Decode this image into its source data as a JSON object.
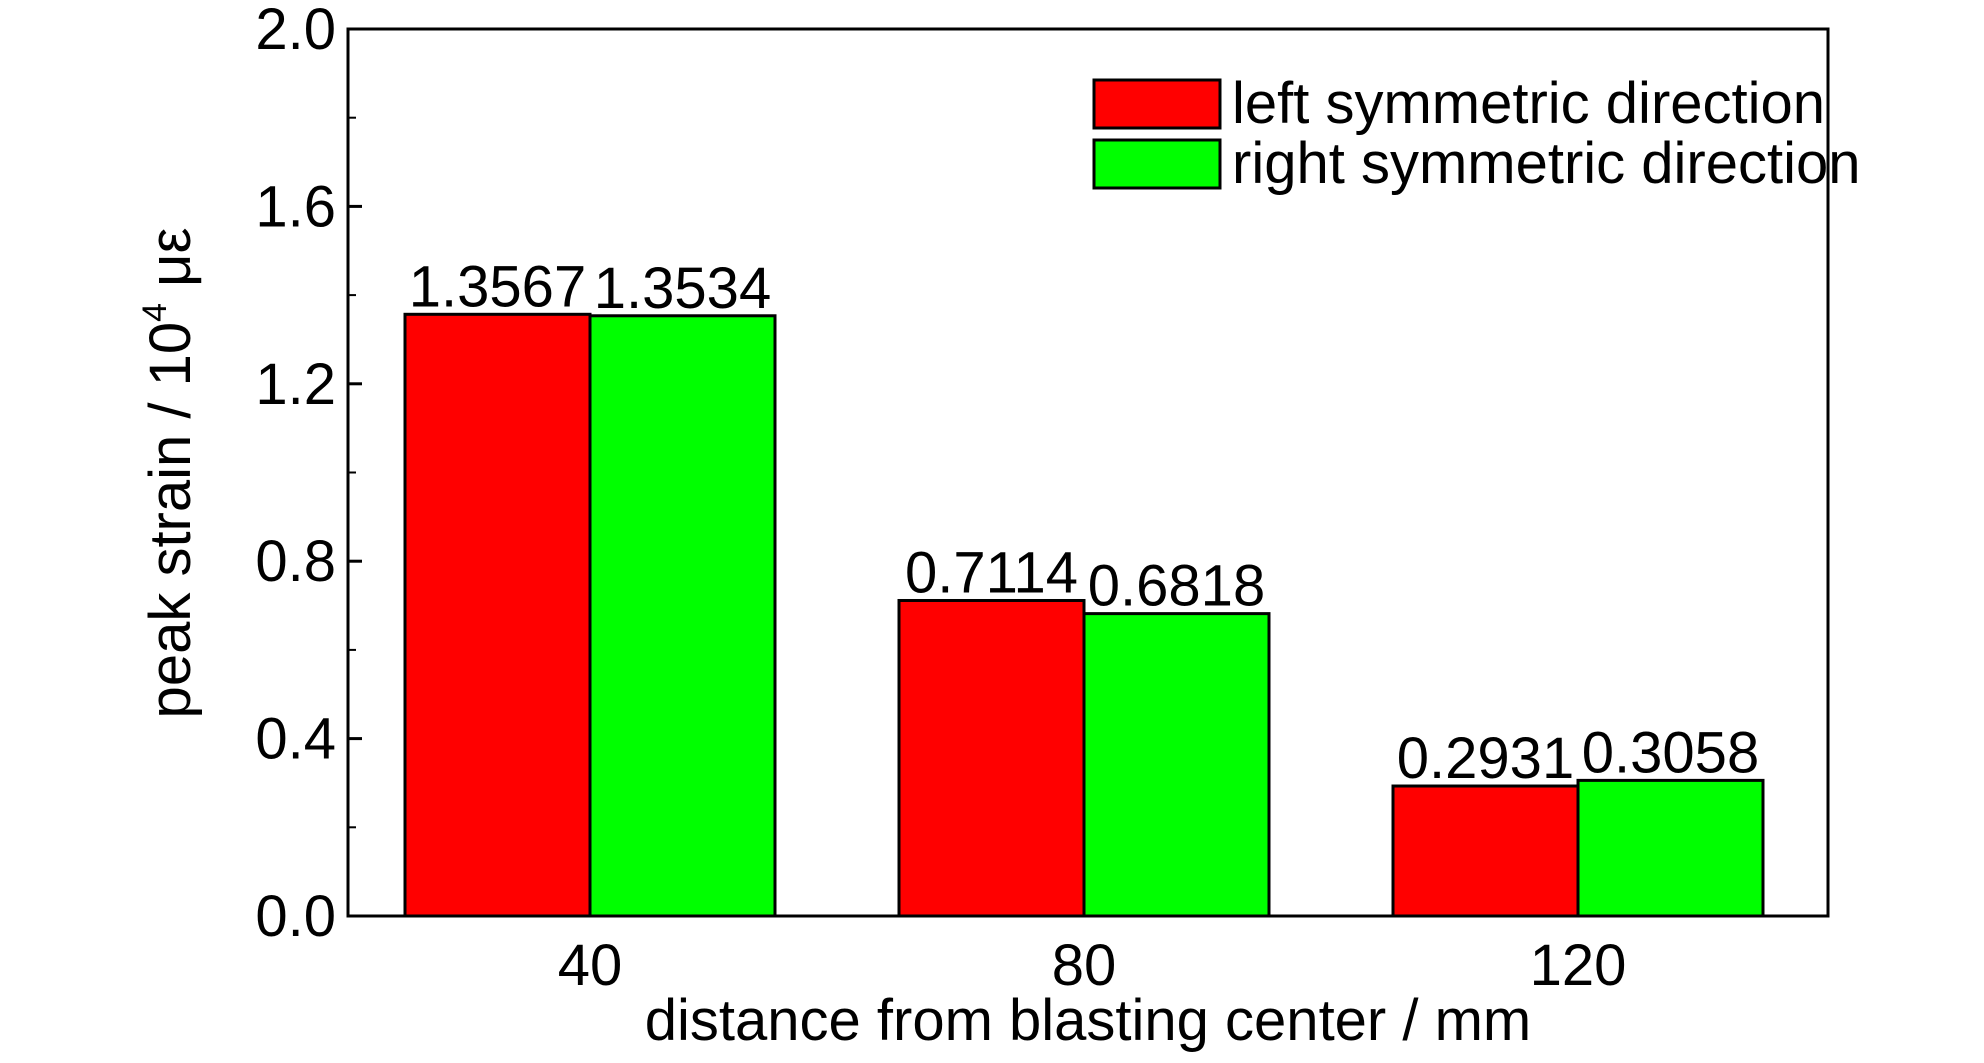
{
  "chart_data": {
    "type": "bar",
    "categories": [
      "40",
      "80",
      "120"
    ],
    "series": [
      {
        "name": "left symmetric direction",
        "values": [
          1.3567,
          0.7114,
          0.2931
        ],
        "labels": [
          "1.3567",
          "0.7114",
          "0.2931"
        ],
        "color": "#ff0000"
      },
      {
        "name": "right symmetric direction",
        "values": [
          1.3534,
          0.6818,
          0.3058
        ],
        "labels": [
          "1.3534",
          "0.6818",
          "0.3058"
        ],
        "color": "#00ff00"
      }
    ],
    "xlabel": "distance from blasting center / mm",
    "ylabel": "peak strain / 10",
    "ylabel_superscript": "4",
    "ylabel_unit": " με",
    "ylim": [
      0,
      2.0
    ],
    "yticks": [
      "0.0",
      "0.4",
      "0.8",
      "1.2",
      "1.6",
      "2.0"
    ],
    "ytick_values": [
      0,
      0.4,
      0.8,
      1.2,
      1.6,
      2.0
    ],
    "grid": false,
    "legend_position": "top-right"
  }
}
